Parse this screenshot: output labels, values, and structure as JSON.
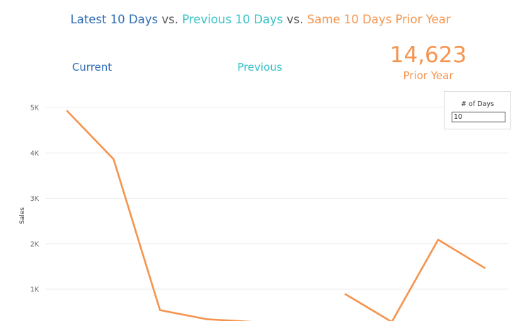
{
  "title": {
    "current": "Latest 10 Days",
    "vs1": " vs. ",
    "previous": "Previous 10 Days",
    "vs2": " vs. ",
    "prior": "Same 10 Days Prior Year"
  },
  "kpis": {
    "current": {
      "label": "Current"
    },
    "previous": {
      "label": "Previous"
    },
    "prior": {
      "value": "14,623",
      "label": "Prior Year"
    }
  },
  "parameter": {
    "title": "# of Days",
    "value": "10"
  },
  "colors": {
    "current": "#2f6db5",
    "previous": "#37c1c6",
    "prior": "#f5944e",
    "grid": "#ececec",
    "axis_text": "#666666"
  },
  "chart_data": {
    "type": "line",
    "ylabel": "Sales",
    "ylim": [
      0,
      5200
    ],
    "y_ticks": [
      1000,
      2000,
      3000,
      4000,
      5000
    ],
    "y_tick_labels": [
      "1K",
      "2K",
      "3K",
      "4K",
      "5K"
    ],
    "grid": true,
    "series": [
      {
        "color": "#f5944e",
        "segments": [
          [
            {
              "x": 1,
              "y": 4920
            },
            {
              "x": 2,
              "y": 3860
            },
            {
              "x": 3,
              "y": 540
            },
            {
              "x": 4,
              "y": 340
            },
            {
              "x": 5,
              "y": 280
            }
          ],
          [
            {
              "x": 7,
              "y": 890
            },
            {
              "x": 8,
              "y": 280
            },
            {
              "x": 9,
              "y": 2090
            },
            {
              "x": 10,
              "y": 1470
            }
          ]
        ]
      }
    ]
  }
}
